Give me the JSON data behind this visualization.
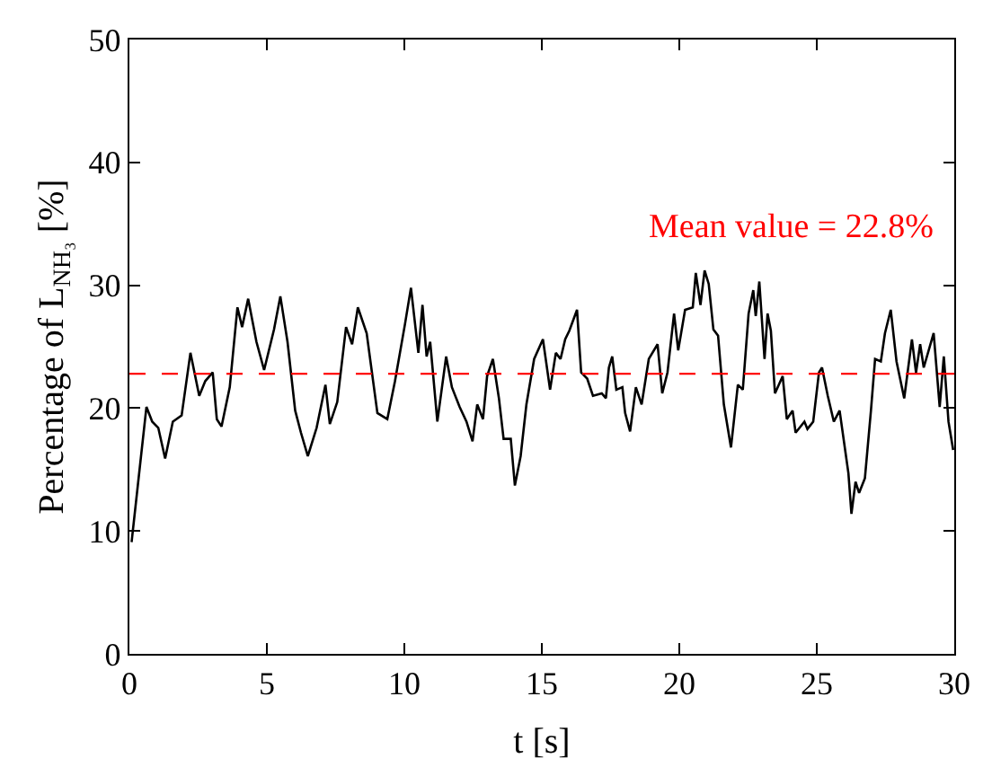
{
  "chart_data": {
    "type": "line",
    "xlabel": "t [s]",
    "ylabel": "Percentage of L$_{NH₃}$ [%]",
    "xlim": [
      0,
      30
    ],
    "ylim": [
      0,
      50
    ],
    "xticks": [
      0,
      5,
      10,
      15,
      20,
      25,
      30
    ],
    "yticks": [
      0,
      10,
      20,
      30,
      40,
      50
    ],
    "grid": false,
    "marker": "none",
    "line_style": "solid",
    "ref_lines": [
      {
        "axis": "y",
        "value": 22.8,
        "label": "Mean value = 22.8%",
        "color": "#ff0000",
        "line_style": "dashed"
      }
    ],
    "series": [
      {
        "color": "#000000",
        "x": [
          0.08,
          0.62,
          0.83,
          1.05,
          1.3,
          1.58,
          1.9,
          2.22,
          2.54,
          2.76,
          3.03,
          3.18,
          3.35,
          3.65,
          3.93,
          4.1,
          4.32,
          4.62,
          4.9,
          5.26,
          5.49,
          5.75,
          6.03,
          6.24,
          6.49,
          6.81,
          7.13,
          7.29,
          7.56,
          7.88,
          8.1,
          8.31,
          8.63,
          9.02,
          9.38,
          9.66,
          10.02,
          10.24,
          10.51,
          10.66,
          10.81,
          10.94,
          11.2,
          11.52,
          11.73,
          12.01,
          12.26,
          12.48,
          12.65,
          12.86,
          13.01,
          13.22,
          13.44,
          13.61,
          13.87,
          14.02,
          14.23,
          14.44,
          14.72,
          15.04,
          15.3,
          15.51,
          15.68,
          15.85,
          16.0,
          16.28,
          16.43,
          16.65,
          16.86,
          17.18,
          17.33,
          17.44,
          17.56,
          17.71,
          17.93,
          18.03,
          18.21,
          18.42,
          18.63,
          18.89,
          19.21,
          19.38,
          19.57,
          19.81,
          19.96,
          20.21,
          20.49,
          20.6,
          20.77,
          20.92,
          21.07,
          21.24,
          21.41,
          21.62,
          21.88,
          22.13,
          22.31,
          22.52,
          22.69,
          22.78,
          22.91,
          23.1,
          23.21,
          23.33,
          23.48,
          23.76,
          23.91,
          24.12,
          24.23,
          24.55,
          24.66,
          24.87,
          25.08,
          25.19,
          25.4,
          25.62,
          25.83,
          26.15,
          26.26,
          26.41,
          26.54,
          26.75,
          26.97,
          27.12,
          27.33,
          27.48,
          27.69,
          27.9,
          28.18,
          28.46,
          28.61,
          28.76,
          28.89,
          29.25,
          29.47,
          29.62,
          29.79,
          29.96
        ],
        "values": [
          9.1,
          20.1,
          18.9,
          18.4,
          15.9,
          18.9,
          19.4,
          24.5,
          21.0,
          22.2,
          22.9,
          19.1,
          18.5,
          21.7,
          28.2,
          26.6,
          28.9,
          25.4,
          23.1,
          26.4,
          29.1,
          25.4,
          19.8,
          18.0,
          16.1,
          18.4,
          21.9,
          18.7,
          20.5,
          26.6,
          25.2,
          28.2,
          26.1,
          19.6,
          19.1,
          22.2,
          26.8,
          29.8,
          24.5,
          28.4,
          24.2,
          25.4,
          18.9,
          24.2,
          21.7,
          20.1,
          18.9,
          17.3,
          20.3,
          19.1,
          22.6,
          24.0,
          20.8,
          17.5,
          17.5,
          13.7,
          16.1,
          20.3,
          24.0,
          25.6,
          21.5,
          24.5,
          24.0,
          25.6,
          26.3,
          28.0,
          22.9,
          22.4,
          21.0,
          21.2,
          20.8,
          23.3,
          24.2,
          21.5,
          21.7,
          19.6,
          18.1,
          21.7,
          20.3,
          24.0,
          25.2,
          21.2,
          22.9,
          27.7,
          24.7,
          28.0,
          28.2,
          31.0,
          28.4,
          31.2,
          30.1,
          26.4,
          25.9,
          20.3,
          16.8,
          21.9,
          21.5,
          27.7,
          29.6,
          27.5,
          30.3,
          24.0,
          27.7,
          26.3,
          21.2,
          22.6,
          19.1,
          19.8,
          18.0,
          18.9,
          18.3,
          18.9,
          22.9,
          23.3,
          21.0,
          18.9,
          19.8,
          14.7,
          11.4,
          14.0,
          13.1,
          14.3,
          19.8,
          24.0,
          23.8,
          26.1,
          28.0,
          23.8,
          20.8,
          25.6,
          22.9,
          25.2,
          23.3,
          26.1,
          20.1,
          24.2,
          18.9,
          16.6
        ]
      }
    ]
  }
}
